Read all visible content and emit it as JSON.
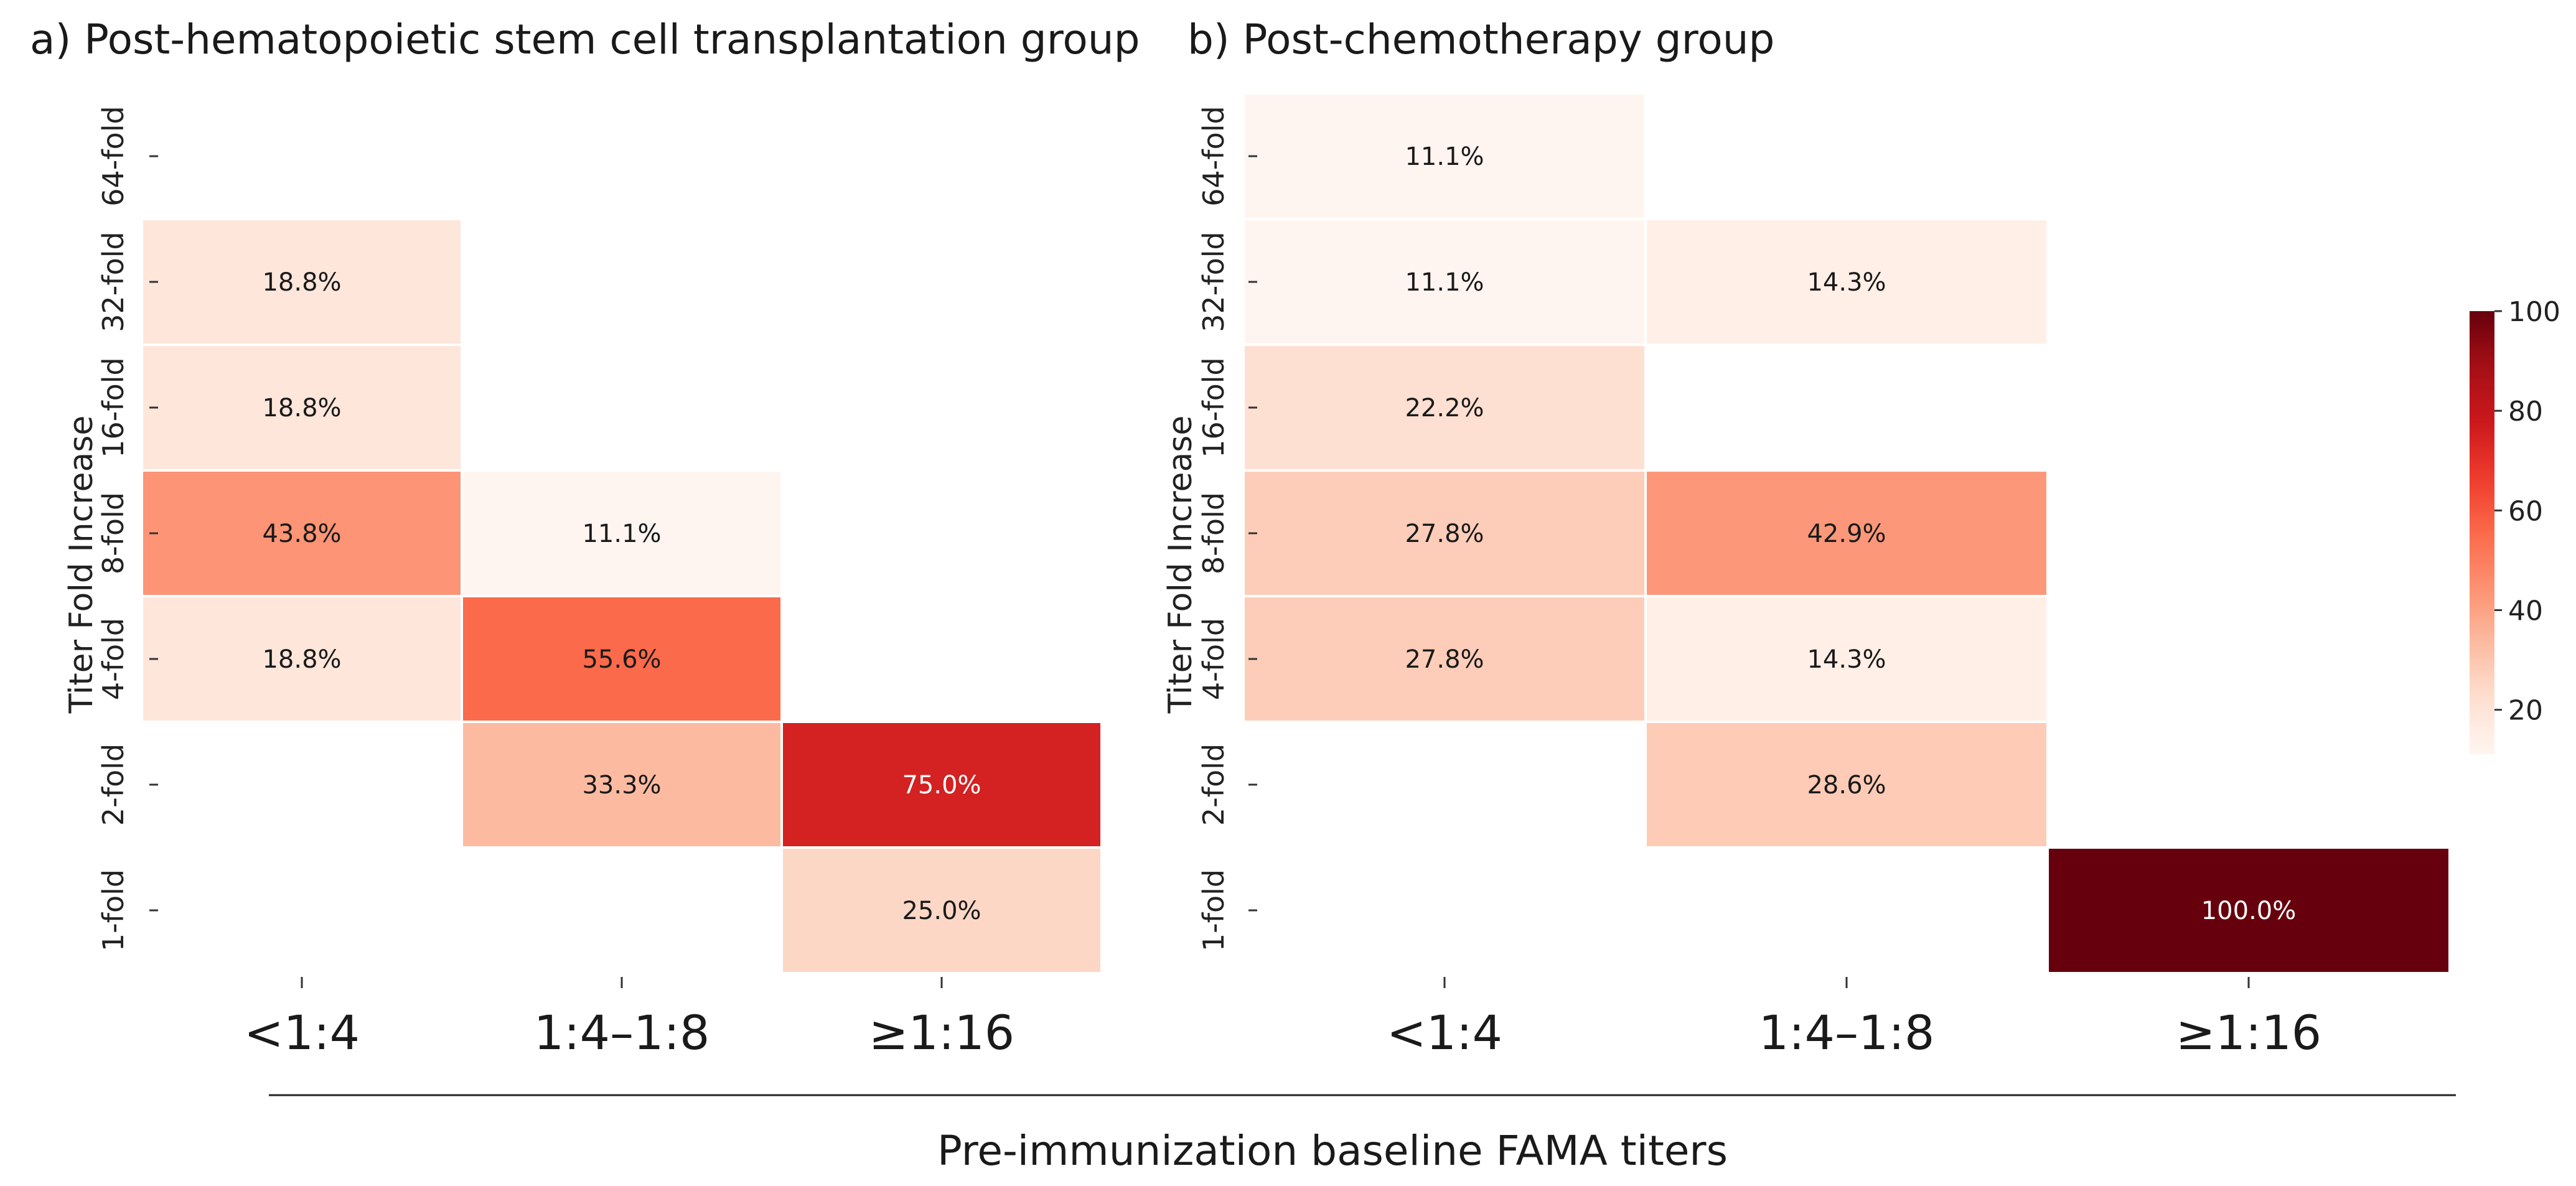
{
  "chart_data": [
    {
      "type": "heatmap",
      "title": "a) Post-hematopoietic stem cell transplantation group",
      "ylabel": "Titer Fold Increase",
      "x_categories": [
        "<1:4",
        "1:4–1:8",
        "≥1:16"
      ],
      "y_categories": [
        "64-fold",
        "32-fold",
        "16-fold",
        "8-fold",
        "4-fold",
        "2-fold",
        "1-fold"
      ],
      "cells": [
        {
          "x": "<1:4",
          "y": "32-fold",
          "value": 18.8,
          "label": "18.8%"
        },
        {
          "x": "<1:4",
          "y": "16-fold",
          "value": 18.8,
          "label": "18.8%"
        },
        {
          "x": "<1:4",
          "y": "8-fold",
          "value": 43.8,
          "label": "43.8%"
        },
        {
          "x": "<1:4",
          "y": "4-fold",
          "value": 18.8,
          "label": "18.8%"
        },
        {
          "x": "1:4–1:8",
          "y": "8-fold",
          "value": 11.1,
          "label": "11.1%"
        },
        {
          "x": "1:4–1:8",
          "y": "4-fold",
          "value": 55.6,
          "label": "55.6%"
        },
        {
          "x": "1:4–1:8",
          "y": "2-fold",
          "value": 33.3,
          "label": "33.3%"
        },
        {
          "x": "≥1:16",
          "y": "2-fold",
          "value": 75.0,
          "label": "75.0%"
        },
        {
          "x": "≥1:16",
          "y": "1-fold",
          "value": 25.0,
          "label": "25.0%"
        }
      ]
    },
    {
      "type": "heatmap",
      "title": "b) Post-chemotherapy group",
      "ylabel": "Titer Fold Increase",
      "x_categories": [
        "<1:4",
        "1:4–1:8",
        "≥1:16"
      ],
      "y_categories": [
        "64-fold",
        "32-fold",
        "16-fold",
        "8-fold",
        "4-fold",
        "2-fold",
        "1-fold"
      ],
      "cells": [
        {
          "x": "<1:4",
          "y": "64-fold",
          "value": 11.1,
          "label": "11.1%"
        },
        {
          "x": "<1:4",
          "y": "32-fold",
          "value": 11.1,
          "label": "11.1%"
        },
        {
          "x": "<1:4",
          "y": "16-fold",
          "value": 22.2,
          "label": "22.2%"
        },
        {
          "x": "<1:4",
          "y": "8-fold",
          "value": 27.8,
          "label": "27.8%"
        },
        {
          "x": "<1:4",
          "y": "4-fold",
          "value": 27.8,
          "label": "27.8%"
        },
        {
          "x": "1:4–1:8",
          "y": "32-fold",
          "value": 14.3,
          "label": "14.3%"
        },
        {
          "x": "1:4–1:8",
          "y": "8-fold",
          "value": 42.9,
          "label": "42.9%"
        },
        {
          "x": "1:4–1:8",
          "y": "4-fold",
          "value": 14.3,
          "label": "14.3%"
        },
        {
          "x": "1:4–1:8",
          "y": "2-fold",
          "value": 28.6,
          "label": "28.6%"
        },
        {
          "x": "≥1:16",
          "y": "1-fold",
          "value": 100.0,
          "label": "100.0%"
        }
      ]
    }
  ],
  "shared_xlabel": "Pre-immunization baseline FAMA titers",
  "colorbar": {
    "colormap": "Reds",
    "min": 11.1,
    "max": 100,
    "ticks": [
      20,
      40,
      60,
      80,
      100
    ]
  }
}
